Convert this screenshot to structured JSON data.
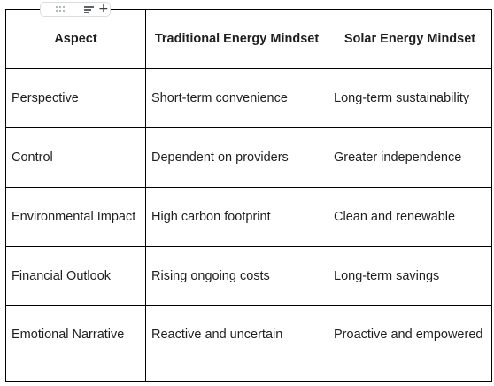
{
  "table": {
    "headers": [
      "Aspect",
      "Traditional Energy Mindset",
      "Solar Energy Mindset"
    ],
    "rows": [
      [
        "Perspective",
        "Short-term convenience",
        "Long-term sustainability"
      ],
      [
        "Control",
        "Dependent on providers",
        "Greater independence"
      ],
      [
        "Environmental Impact",
        "High carbon footprint",
        "Clean and renewable"
      ],
      [
        "Financial Outlook",
        "Rising ongoing costs",
        "Long-term savings"
      ],
      [
        "Emotional Narrative",
        "Reactive and uncertain",
        "Proactive and empowered"
      ]
    ]
  },
  "toolbar": {
    "icons": [
      "drag-handle-icon",
      "sort-icon",
      "add-icon"
    ],
    "add_glyph": "+"
  },
  "colors": {
    "border": "#000000",
    "text": "#1f1f1f",
    "toolbar_border": "#dadce0"
  }
}
